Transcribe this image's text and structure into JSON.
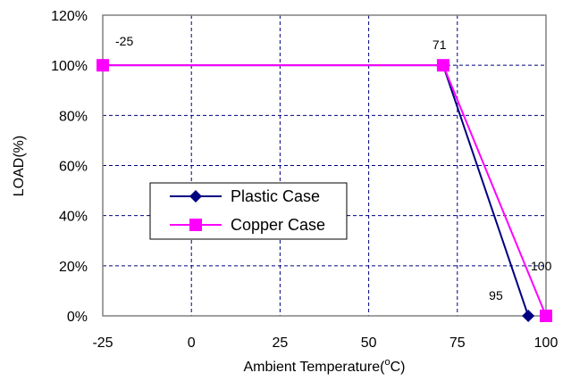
{
  "chart_data": {
    "type": "line",
    "xlabel_main": "Ambient Temperature(",
    "xlabel_sup": "o",
    "xlabel_unit": "C)",
    "ylabel": "LOAD(%)",
    "xlim": [
      -25,
      100
    ],
    "ylim": [
      0,
      120
    ],
    "x_ticks": [
      -25,
      0,
      25,
      50,
      75,
      100
    ],
    "y_ticks": [
      0,
      20,
      40,
      60,
      80,
      100,
      120
    ],
    "x_tick_labels": [
      "-25",
      "0",
      "25",
      "50",
      "75",
      "100"
    ],
    "y_tick_labels": [
      "0%",
      "20%",
      "40%",
      "60%",
      "80%",
      "100%",
      "120%"
    ],
    "grid": true,
    "legend_position": "center-left",
    "series": [
      {
        "name": "Plastic Case",
        "color": "#000080",
        "marker": "diamond",
        "points": [
          [
            -25,
            100
          ],
          [
            71,
            100
          ],
          [
            95,
            0
          ]
        ]
      },
      {
        "name": "Copper Case",
        "color": "#FF00FF",
        "marker": "square",
        "points": [
          [
            -25,
            100
          ],
          [
            71,
            100
          ],
          [
            100,
            0
          ]
        ]
      }
    ],
    "annotations": [
      {
        "text": "-25",
        "x": -25,
        "y": 100
      },
      {
        "text": "71",
        "x": 71,
        "y": 100
      },
      {
        "text": "95",
        "x": 95,
        "y": 0
      },
      {
        "text": "100",
        "x": 100,
        "y": 0
      }
    ]
  }
}
